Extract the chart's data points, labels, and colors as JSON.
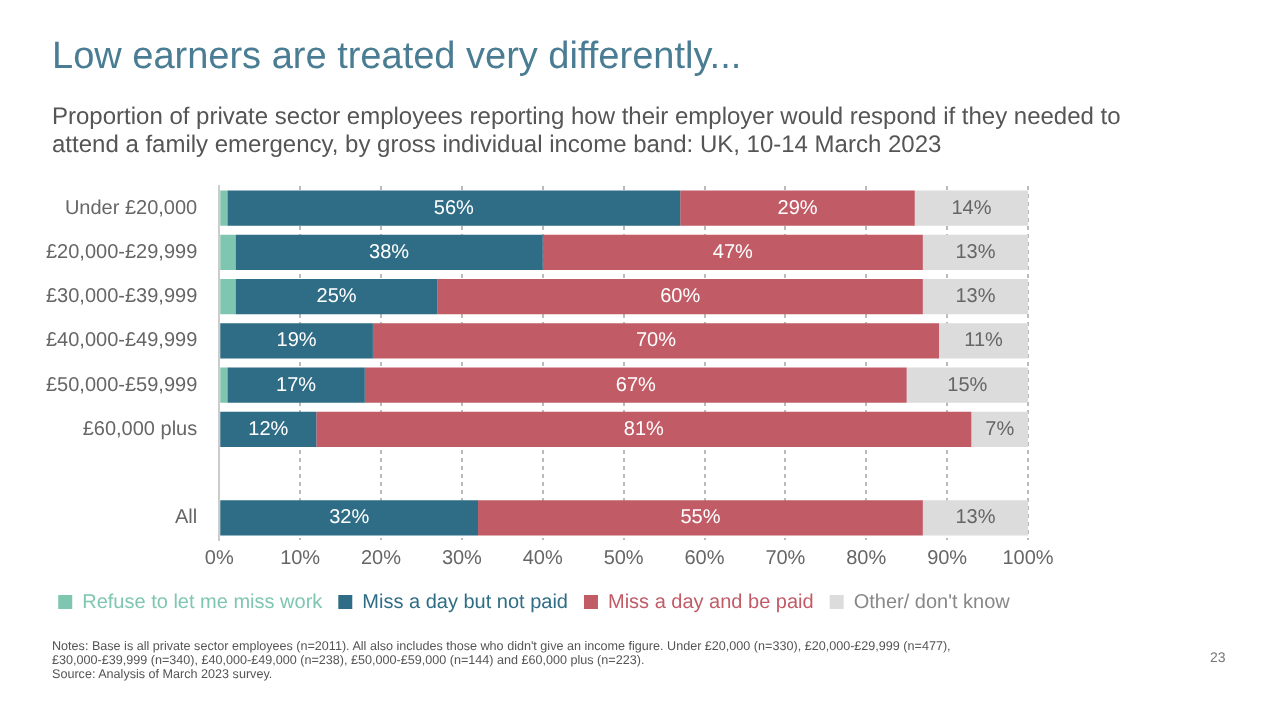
{
  "chart_data": {
    "type": "bar",
    "orientation": "horizontal",
    "stacked": true,
    "title": "Low earners are treated very differently...",
    "subtitle": "Proportion of private sector employees reporting how their employer would respond if they needed to attend a family emergency, by gross individual income band: UK, 10-14 March 2023",
    "categories": [
      "Under £20,000",
      "£20,000-£29,999",
      "£30,000-£39,999",
      "£40,000-£49,999",
      "£50,000-£59,999",
      "£60,000 plus",
      null,
      "All"
    ],
    "series": [
      {
        "name": "Refuse to let me miss work",
        "color": "#7fc6b0",
        "values": [
          1,
          2,
          2,
          0,
          1,
          0,
          null,
          0
        ]
      },
      {
        "name": "Miss a day but not paid",
        "color": "#2f6d86",
        "values": [
          56,
          38,
          25,
          19,
          17,
          12,
          null,
          32
        ],
        "value_labels": [
          "56%",
          "38%",
          "25%",
          "19%",
          "17%",
          "12%",
          null,
          "32%"
        ]
      },
      {
        "name": "Miss a day and be paid",
        "color": "#c15c67",
        "values": [
          29,
          47,
          60,
          70,
          67,
          81,
          null,
          55
        ],
        "value_labels": [
          "29%",
          "47%",
          "60%",
          "70%",
          "67%",
          "81%",
          null,
          "55%"
        ]
      },
      {
        "name": "Other/ don't know",
        "color": "#dcdcdc",
        "values": [
          14,
          13,
          13,
          11,
          15,
          7,
          null,
          13
        ],
        "value_labels": [
          "14%",
          "13%",
          "13%",
          "11%",
          "15%",
          "7%",
          null,
          "13%"
        ]
      }
    ],
    "xlim": [
      0,
      100
    ],
    "xticks": [
      {
        "value": 0,
        "label": "0%"
      },
      {
        "value": 10,
        "label": "10%"
      },
      {
        "value": 20,
        "label": "20%"
      },
      {
        "value": 30,
        "label": "30%"
      },
      {
        "value": 40,
        "label": "40%"
      },
      {
        "value": 50,
        "label": "50%"
      },
      {
        "value": 60,
        "label": "60%"
      },
      {
        "value": 70,
        "label": "70%"
      },
      {
        "value": 80,
        "label": "80%"
      },
      {
        "value": 90,
        "label": "90%"
      },
      {
        "value": 100,
        "label": "100%"
      }
    ],
    "grid": "x",
    "legend": "bottom",
    "annotations": [
      "Notes: Base is all private sector employees (n=2011). All also includes those who didn't give an income figure. Under £20,000 (n=330), £20,000-£29,999 (n=477), £30,000-£39,999 (n=340), £40,000-£49,000 (n=238), £50,000-£59,000 (n=144) and £60,000 plus (n=223).",
      "Source: Analysis of March 2023 survey.",
      "23"
    ]
  }
}
